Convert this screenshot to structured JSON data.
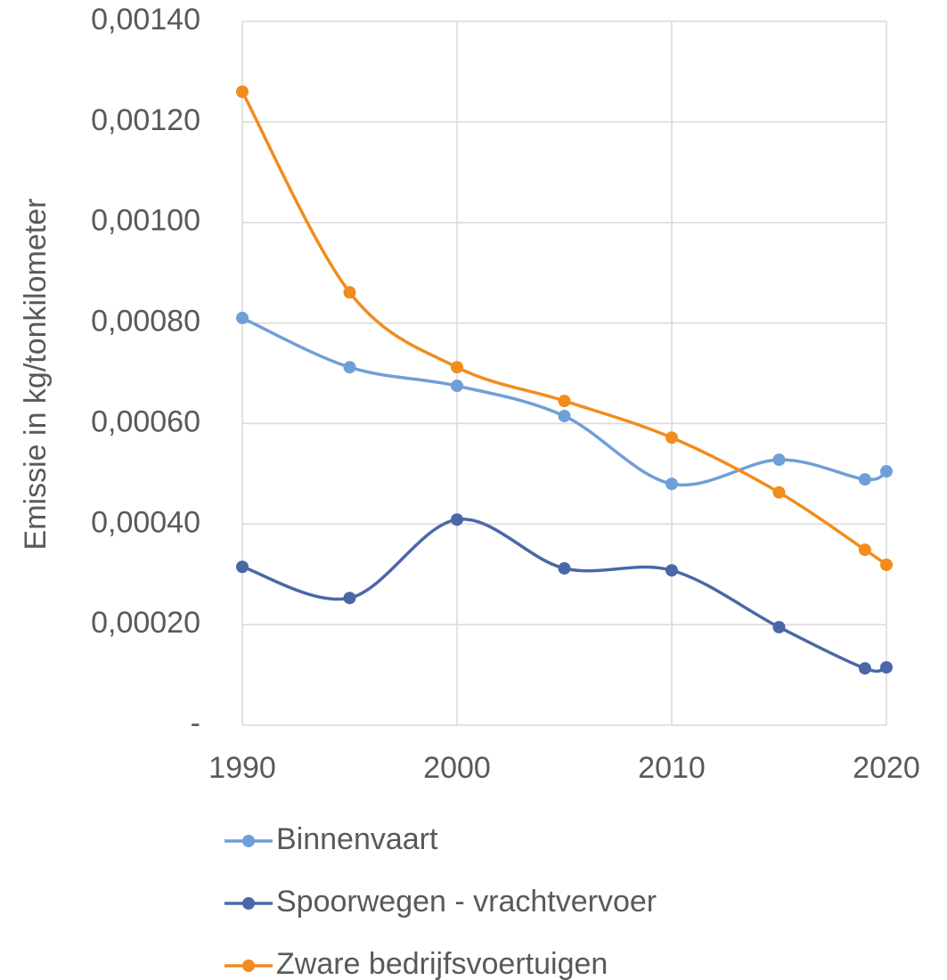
{
  "chart_data": {
    "type": "line",
    "smooth": true,
    "y_label": "Emissie in kg/tonkilometer",
    "x": [
      1990,
      1995,
      2000,
      2005,
      2010,
      2015,
      2019,
      2020
    ],
    "series": [
      {
        "name": "Binnenvaart",
        "color": "#6f9fd8",
        "values": [
          0.00081,
          0.000712,
          0.000675,
          0.000615,
          0.00048,
          0.000528,
          0.000489,
          0.000505
        ]
      },
      {
        "name": "Spoorwegen - vrachtvervoer",
        "color": "#4a68a8",
        "values": [
          0.000315,
          0.000253,
          0.000409,
          0.000312,
          0.000308,
          0.000195,
          0.000113,
          0.000115
        ]
      },
      {
        "name": "Zware bedrijfsvoertuigen",
        "color": "#f28c1c",
        "values": [
          0.00126,
          0.000861,
          0.000712,
          0.000645,
          0.000572,
          0.000463,
          0.000349,
          0.000319
        ]
      }
    ],
    "xlim": [
      1990,
      2020
    ],
    "xticks": [
      1990,
      2000,
      2010,
      2020
    ],
    "ylim": [
      0,
      0.0014
    ],
    "yticks": [
      {
        "value": 0,
        "label": "-"
      },
      {
        "value": 0.0002,
        "label": "0,00020"
      },
      {
        "value": 0.0004,
        "label": "0,00040"
      },
      {
        "value": 0.0006,
        "label": "0,00060"
      },
      {
        "value": 0.0008,
        "label": "0,00080"
      },
      {
        "value": 0.001,
        "label": "0,00100"
      },
      {
        "value": 0.0012,
        "label": "0,00120"
      },
      {
        "value": 0.0014,
        "label": "0,00140"
      }
    ],
    "grid": true,
    "legend": "bottom"
  }
}
